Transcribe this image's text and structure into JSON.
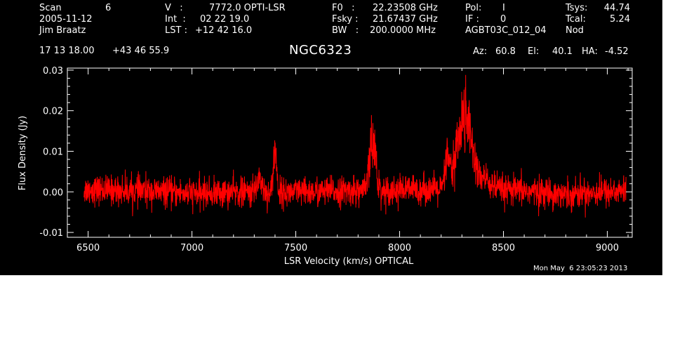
{
  "header": {
    "scan_label": "Scan",
    "scan_number": "6",
    "date": "2005-11-12",
    "observer": "Jim Braatz",
    "v_label": "V   :",
    "v_value": "7772.0 OPTI-LSR",
    "int_label": "Int  :",
    "int_value": "02 22 19.0",
    "lst_label": "LST :",
    "lst_value": "+12 42 16.0",
    "f0_label": "F0   :",
    "f0_value": "22.23508 GHz",
    "fsky_label": "Fsky :",
    "fsky_value": "21.67437 GHz",
    "bw_label": "BW   :",
    "bw_value": "200.0000 MHz",
    "pol_label": "Pol:",
    "pol_value": "I",
    "if_label": "IF :",
    "if_value": "0",
    "project": "AGBT03C_012_04",
    "tsys_label": "Tsys:",
    "tsys_value": "44.74",
    "tcal_label": "Tcal:",
    "tcal_value": "5.24",
    "proc": "Nod",
    "ra": "17 13 18.00",
    "dec": "+43 46 55.9",
    "object": "NGC6323",
    "az_label": "Az:",
    "az_value": "60.8",
    "el_label": "El:",
    "el_value": "40.1",
    "ha_label": "HA:",
    "ha_value": "-4.52",
    "timestamp": "Mon May  6 23:05:23 2013"
  },
  "chart_data": {
    "type": "line",
    "xlabel": "LSR Velocity (km/s) OPTICAL",
    "ylabel": "Flux Density (Jy)",
    "xlim": [
      6400,
      9120
    ],
    "ylim": [
      -0.0112,
      0.0305
    ],
    "x_ticks": [
      6500,
      7000,
      7500,
      8000,
      8500,
      9000
    ],
    "x_tick_labels": [
      "6500",
      "7000",
      "7500",
      "8000",
      "8500",
      "9000"
    ],
    "y_ticks": [
      -0.01,
      0.0,
      0.01,
      0.02,
      0.03
    ],
    "y_tick_labels": [
      "-0.01",
      "0.00",
      "0.01",
      "0.02",
      "0.03"
    ],
    "grid": false,
    "line_color": "#ff0000",
    "axis_color": "#ffffff",
    "background": "#000000",
    "series": [
      {
        "x_range": [
          6480,
          9090
        ],
        "noise_rms": 0.0018,
        "baseline": [
          [
            6480,
            0.0005
          ],
          [
            6700,
            0.0003
          ],
          [
            7000,
            -0.0004
          ],
          [
            7200,
            -0.0002
          ],
          [
            7500,
            -0.0002
          ],
          [
            7800,
            0.0003
          ],
          [
            8100,
            0.0006
          ],
          [
            8600,
            0.0002
          ],
          [
            8800,
            -0.0005
          ],
          [
            9090,
            0.0003
          ]
        ],
        "features": [
          {
            "center": 7325,
            "width": 12,
            "amplitude": 0.0035
          },
          {
            "center": 7400,
            "width": 8,
            "amplitude": 0.0098
          },
          {
            "center": 7862,
            "width": 10,
            "amplitude": 0.0105
          },
          {
            "center": 7882,
            "width": 9,
            "amplitude": 0.0085
          },
          {
            "center": 8230,
            "width": 10,
            "amplitude": 0.0075
          },
          {
            "center": 8295,
            "width": 28,
            "amplitude": 0.0135
          },
          {
            "center": 8332,
            "width": 18,
            "amplitude": 0.0105
          },
          {
            "center": 8380,
            "width": 45,
            "amplitude": 0.0035
          }
        ]
      }
    ]
  }
}
